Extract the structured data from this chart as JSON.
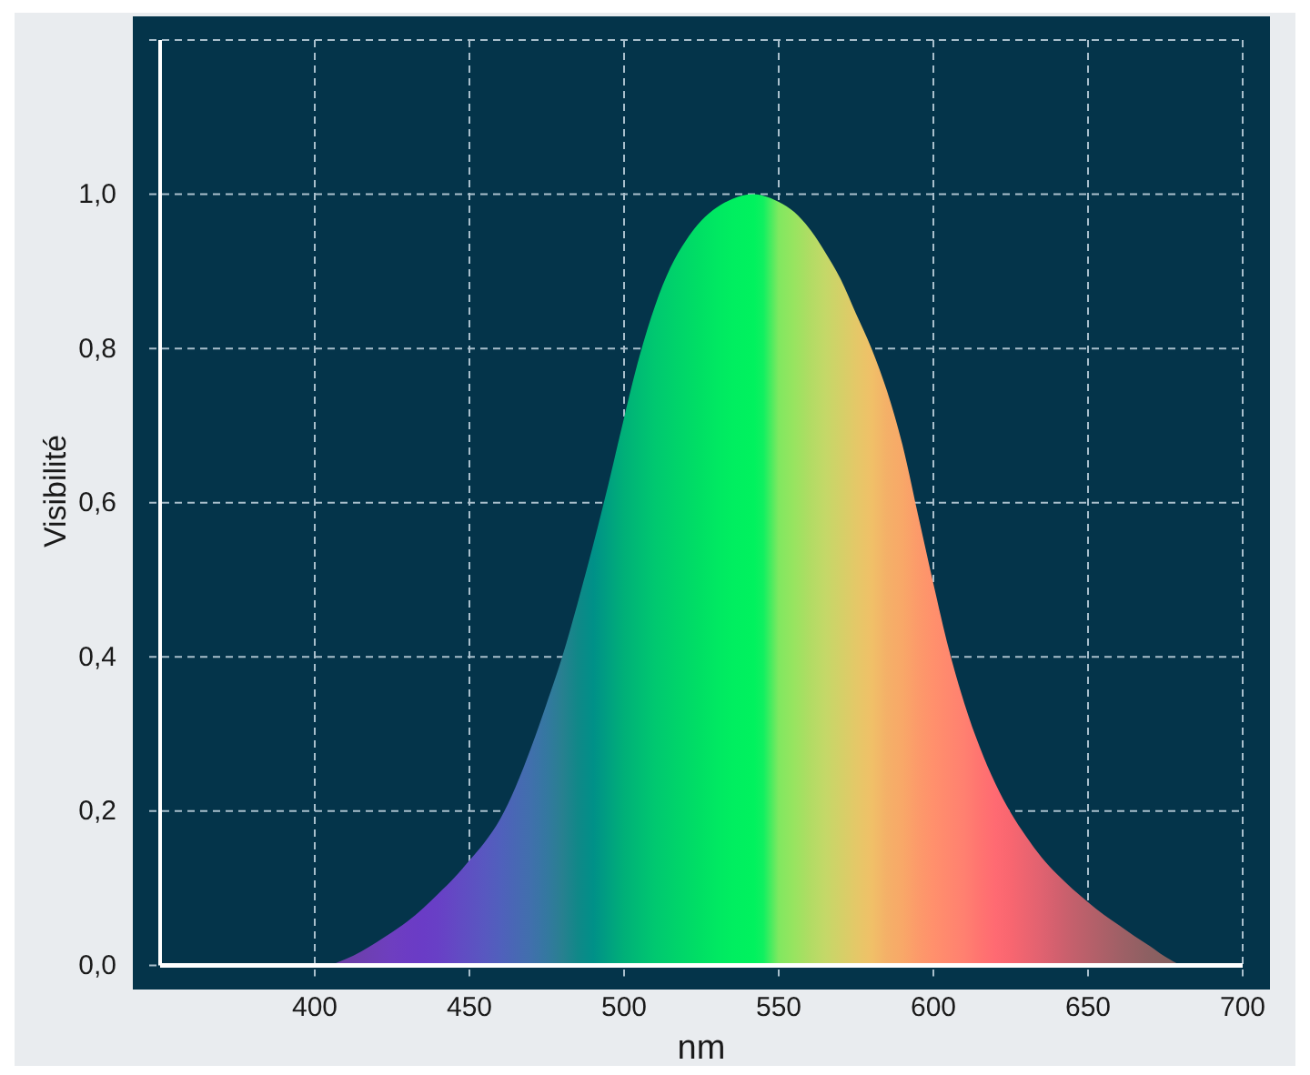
{
  "chart_data": {
    "type": "area",
    "xlabel": "nm",
    "ylabel": "Visibilité",
    "xlim": [
      350,
      700
    ],
    "ylim": [
      0,
      1.2
    ],
    "xticks": [
      400,
      450,
      500,
      550,
      600,
      650,
      700
    ],
    "yticks": [
      {
        "value": 0,
        "label": "0,0"
      },
      {
        "value": 0.2,
        "label": "0,2"
      },
      {
        "value": 0.4,
        "label": "0,4"
      },
      {
        "value": 0.6,
        "label": "0,6"
      },
      {
        "value": 0.8,
        "label": "0,8"
      },
      {
        "value": 1,
        "label": "1,0"
      },
      {
        "value": 1.2,
        "label": null
      }
    ],
    "grid": true,
    "x": [
      405,
      410,
      415,
      420,
      425,
      430,
      435,
      440,
      445,
      450,
      455,
      460,
      465,
      470,
      475,
      480,
      485,
      490,
      495,
      500,
      505,
      510,
      515,
      520,
      525,
      530,
      535,
      542,
      545,
      550,
      555,
      560,
      565,
      570,
      575,
      580,
      585,
      590,
      595,
      600,
      605,
      610,
      615,
      620,
      625,
      630,
      635,
      640,
      645,
      650,
      655,
      660,
      665,
      670,
      675,
      680
    ],
    "series": [
      {
        "values": [
          0,
          0.008,
          0.018,
          0.03,
          0.043,
          0.057,
          0.074,
          0.093,
          0.113,
          0.136,
          0.16,
          0.19,
          0.232,
          0.283,
          0.34,
          0.4,
          0.47,
          0.545,
          0.625,
          0.71,
          0.79,
          0.855,
          0.905,
          0.94,
          0.966,
          0.983,
          0.994,
          1,
          0.998,
          0.99,
          0.977,
          0.955,
          0.925,
          0.89,
          0.845,
          0.8,
          0.745,
          0.675,
          0.585,
          0.495,
          0.41,
          0.34,
          0.283,
          0.236,
          0.198,
          0.167,
          0.14,
          0.118,
          0.099,
          0.082,
          0.066,
          0.052,
          0.038,
          0.025,
          0.011,
          0
        ],
        "colors": [
          "#6b3fa0",
          "#6c3fa8",
          "#6d3fb0",
          "#6e3fb8",
          "#6e3ec0",
          "#6c3cc4",
          "#6a3cc6",
          "#6840c6",
          "#6448c4",
          "#5e50c2",
          "#5858c0",
          "#5060bc",
          "#4868b4",
          "#4070ac",
          "#3478a0",
          "#288090",
          "#108888",
          "#009088",
          "#00a080",
          "#00b078",
          "#00bc74",
          "#00c870",
          "#00d06c",
          "#00d868",
          "#00e064",
          "#00e862",
          "#00ee60",
          "#00f25e",
          "#10f060",
          "#80e860",
          "#98e460",
          "#b0dc64",
          "#c4d868",
          "#d4d068",
          "#e4c868",
          "#f0c068",
          "#f4b068",
          "#f8a868",
          "#fc9a6a",
          "#ff906c",
          "#ff886e",
          "#ff8070",
          "#ff7470",
          "#ff6a72",
          "#f86670",
          "#ec6470",
          "#e06270",
          "#d2606e",
          "#c4606c",
          "#b8606a",
          "#ac6068",
          "#a06066",
          "#966064",
          "#8c6062",
          "#866060",
          "#806060"
        ]
      }
    ]
  }
}
